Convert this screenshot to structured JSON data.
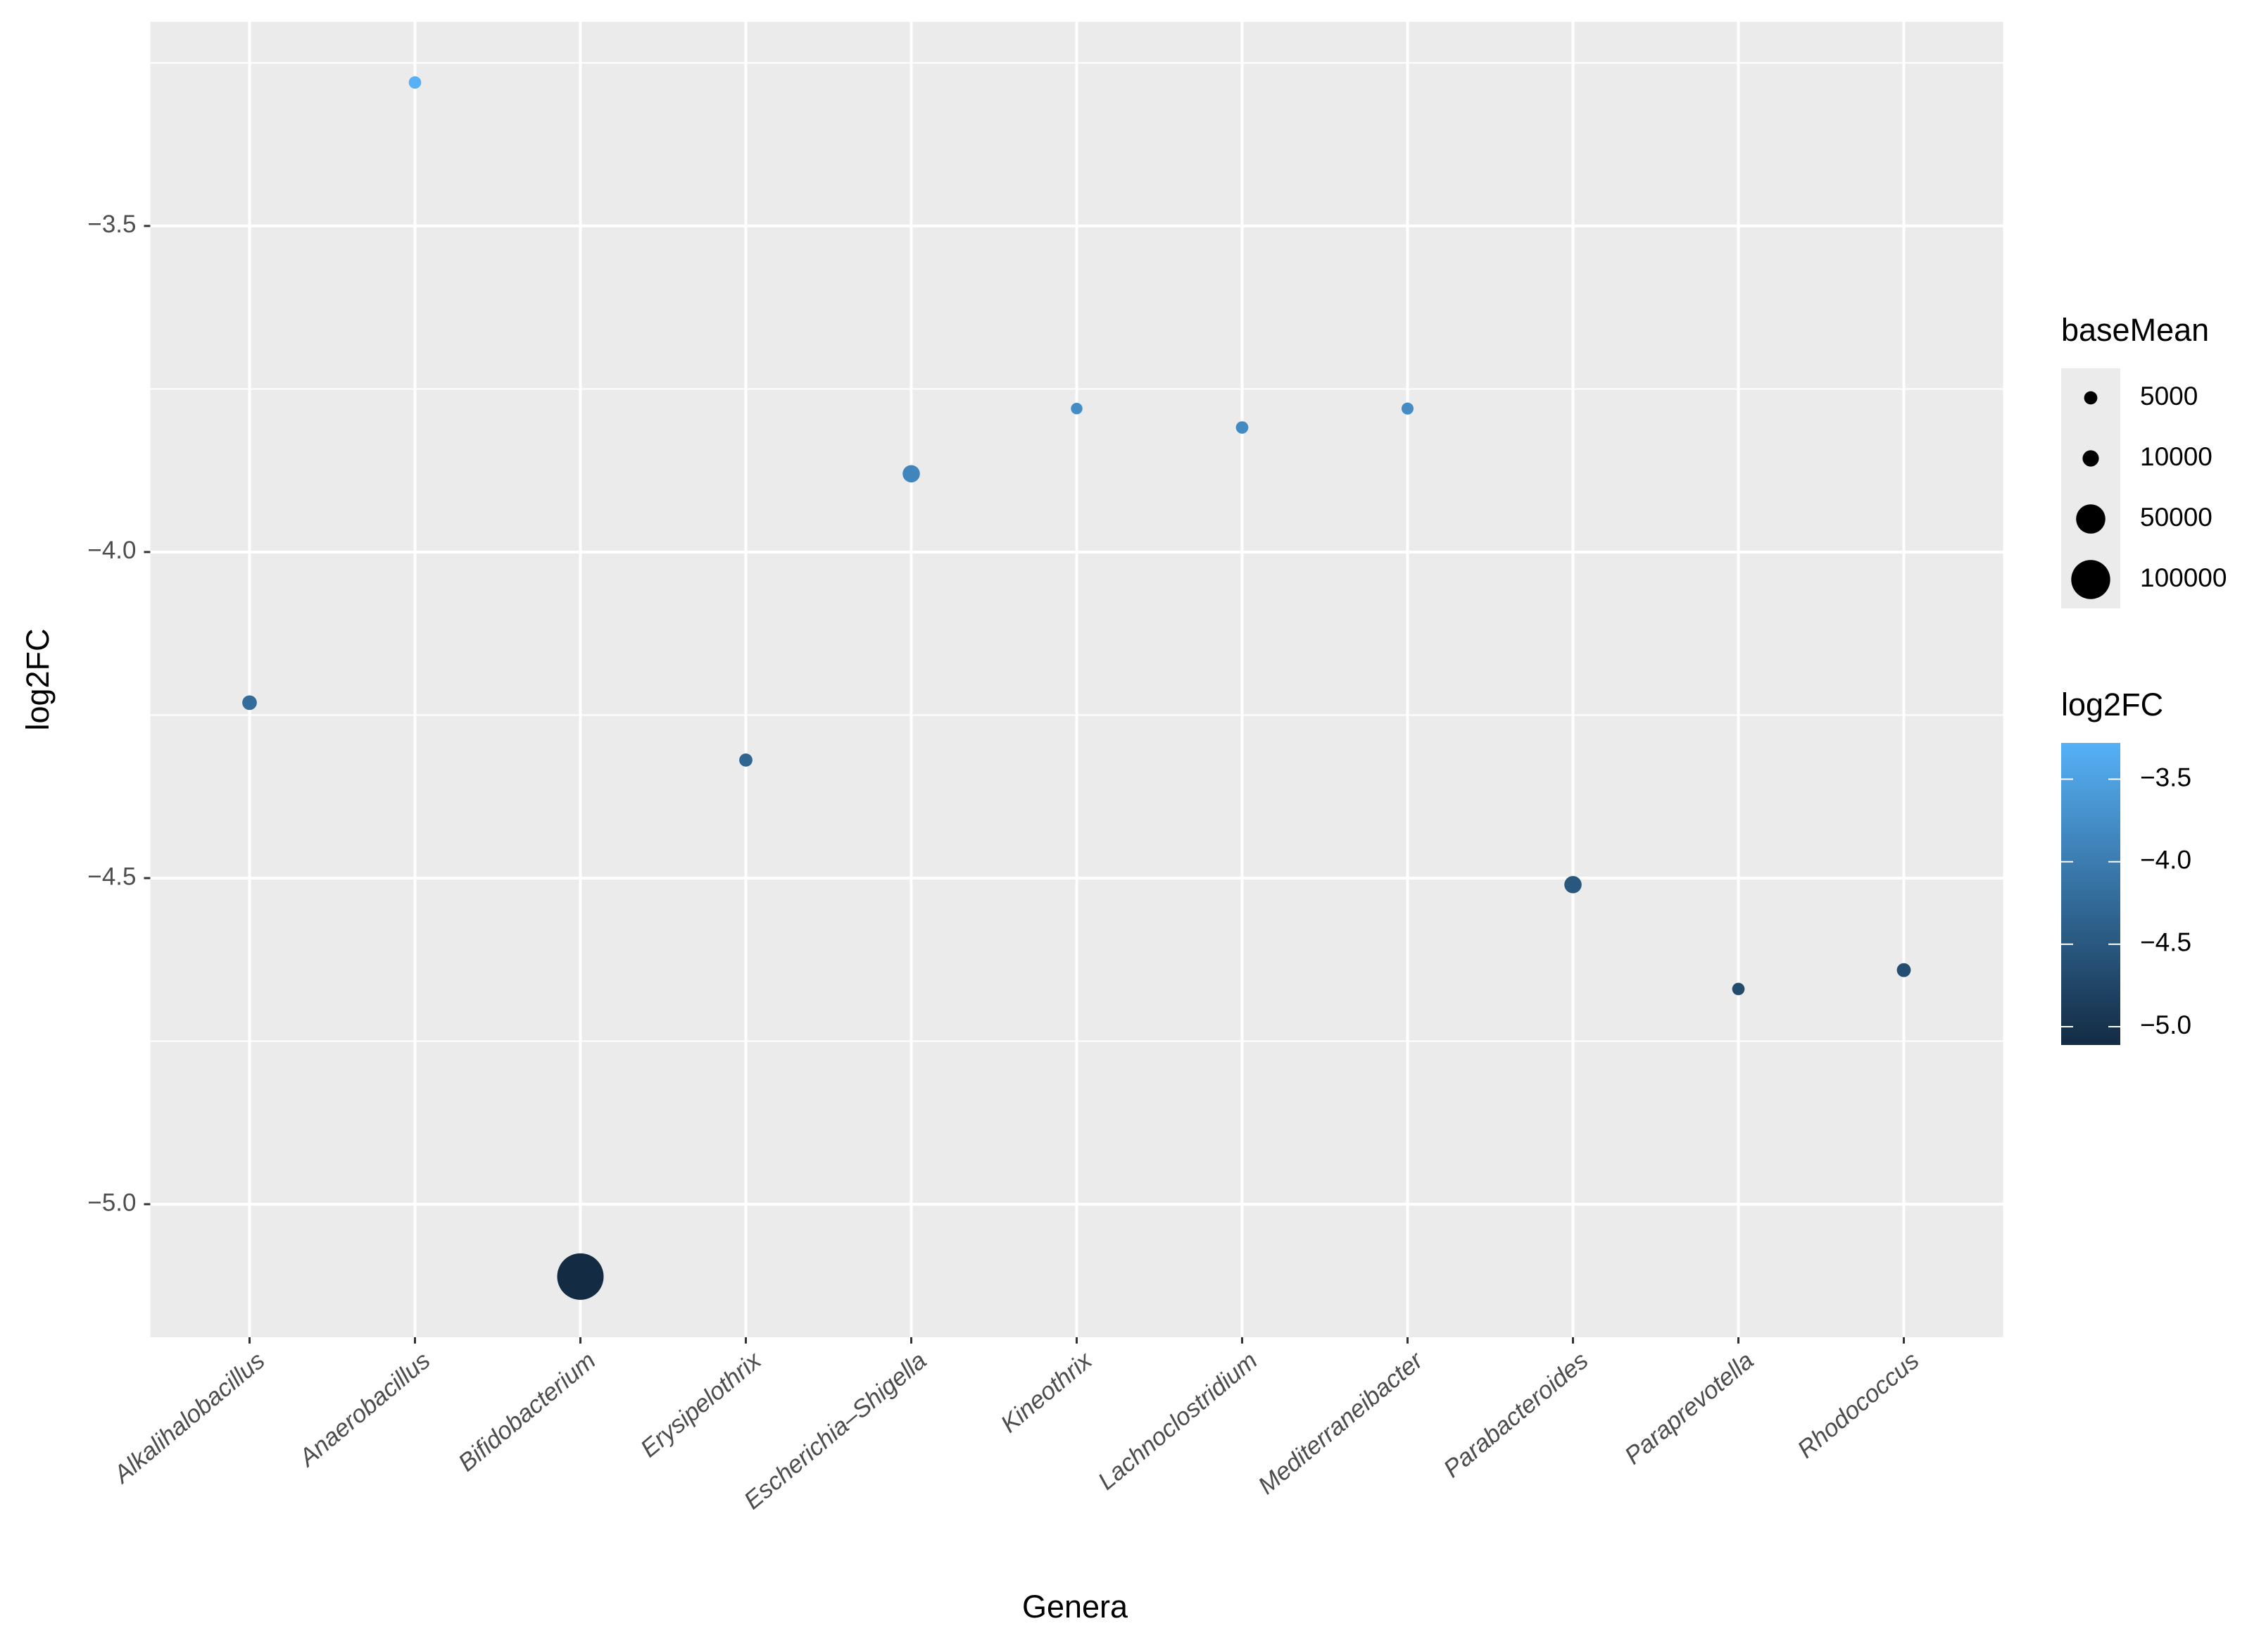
{
  "chart_data": {
    "type": "scatter",
    "x_label": "Genera",
    "y_label": "log2FC",
    "categories": [
      "Alkalihalobacillus",
      "Anaerobacillus",
      "Bifidobacterium",
      "Erysipelothrix",
      "Escherichia–Shigella",
      "Kineothrix",
      "Lachnoclostridium",
      "Mediterraneibacter",
      "Parabacteroides",
      "Paraprevotella",
      "Rhodococcus"
    ],
    "values": [
      -4.231,
      -3.28,
      -5.111,
      -4.319,
      -3.88,
      -3.78,
      -3.809,
      -3.78,
      -4.51,
      -4.67,
      -4.641
    ],
    "sizes": [
      7000,
      4000,
      150000,
      5000,
      12000,
      3000,
      4000,
      3500,
      12000,
      4000,
      6000
    ],
    "ylim": [
      -5.204,
      -3.187
    ],
    "yticks": [
      {
        "value": -5.0,
        "label": "−5.0"
      },
      {
        "value": -4.5,
        "label": "−4.5"
      },
      {
        "value": -4.0,
        "label": "−4.0"
      },
      {
        "value": -3.5,
        "label": "−3.5"
      }
    ],
    "grid": true,
    "size_legend": {
      "title": "baseMean",
      "breaks": [
        5000,
        10000,
        50000,
        100000
      ],
      "color": "#000000"
    },
    "color_legend": {
      "title": "log2FC",
      "low": "#132B43",
      "high": "#56B1F7",
      "ticks": [
        {
          "value": -3.5,
          "label": "−3.5"
        },
        {
          "value": -4.0,
          "label": "−4.0"
        },
        {
          "value": -4.5,
          "label": "−4.5"
        },
        {
          "value": -5.0,
          "label": "−5.0"
        }
      ]
    }
  }
}
